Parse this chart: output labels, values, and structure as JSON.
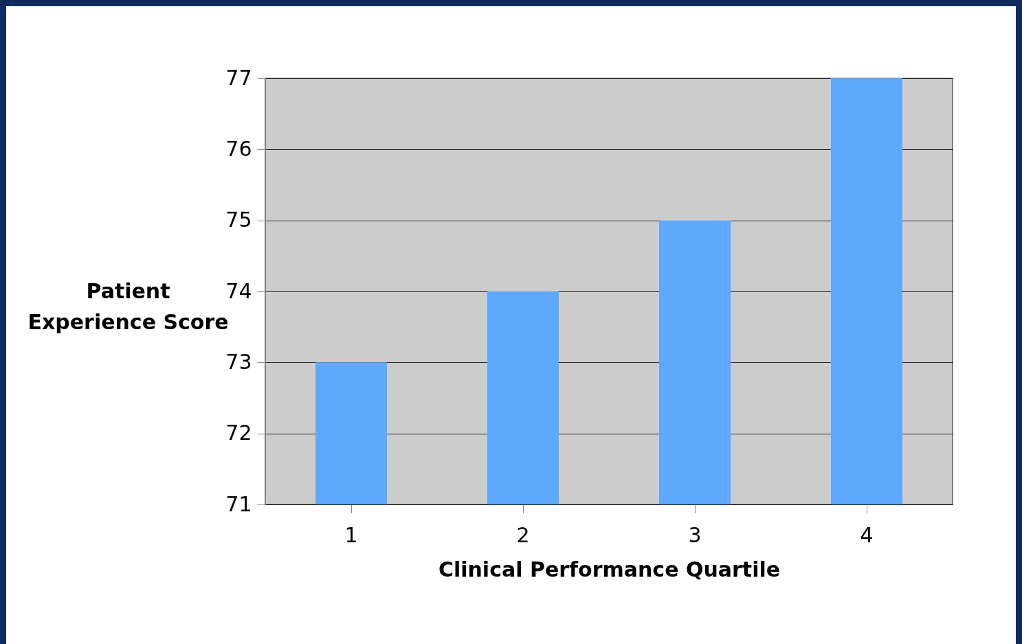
{
  "chart_data": {
    "type": "bar",
    "xlabel": "Clinical Performance Quartile",
    "ylabel": "Patient Experience Score",
    "categories": [
      "1",
      "2",
      "3",
      "4"
    ],
    "values": [
      73,
      74,
      75,
      77
    ],
    "color": "#60a8fe",
    "ylim": [
      71,
      77
    ],
    "yticks": [
      71,
      72,
      73,
      74,
      75,
      76,
      77
    ],
    "grid": "y"
  }
}
